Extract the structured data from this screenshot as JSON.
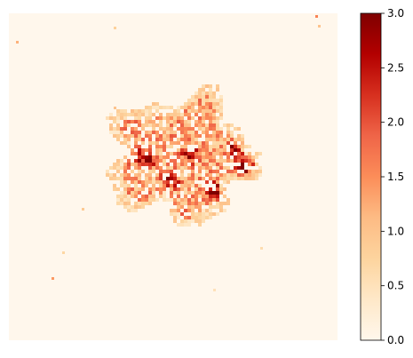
{
  "chart_data": {
    "type": "heatmap",
    "title": "",
    "xlabel": "",
    "ylabel": "",
    "axes_visible": false,
    "grid": false,
    "colormap": "OrRd",
    "colormap_stops": [
      "#fff7ec",
      "#fee8c8",
      "#fdd49e",
      "#fdbb84",
      "#fc8d59",
      "#ef6548",
      "#d7301f",
      "#b30000",
      "#7f0000"
    ],
    "colorbar": {
      "position": "right",
      "vmin": 0.0,
      "vmax": 3.0,
      "ticks": [
        0.0,
        0.5,
        1.0,
        1.5,
        2.0,
        2.5,
        3.0
      ],
      "tick_labels": [
        "0.0",
        "0.5",
        "1.0",
        "1.5",
        "2.0",
        "2.5",
        "3.0"
      ]
    },
    "background_value": 0.0
  }
}
